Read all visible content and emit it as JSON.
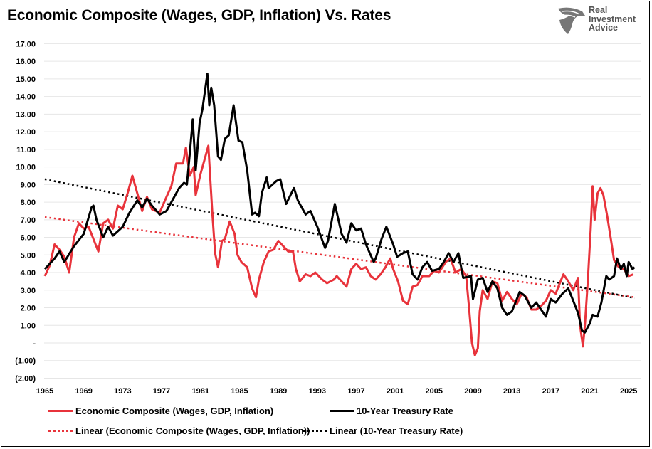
{
  "chart_data": {
    "type": "line",
    "title": "Economic Composite (Wages, GDP, Inflation) Vs. Rates",
    "xlabel": "",
    "ylabel": "",
    "xlim": [
      1965,
      2025.7
    ],
    "ylim": [
      -2,
      17
    ],
    "grid": true,
    "legend_placement": "bottom",
    "x_ticks": [
      "1965",
      "1969",
      "1973",
      "1977",
      "1981",
      "1985",
      "1989",
      "1993",
      "1997",
      "2001",
      "2005",
      "2009",
      "2013",
      "2017",
      "2021",
      "2025"
    ],
    "y_ticks": [
      {
        "value": 17,
        "label": "17.00"
      },
      {
        "value": 16,
        "label": "16.00"
      },
      {
        "value": 15,
        "label": "15.00"
      },
      {
        "value": 14,
        "label": "14.00"
      },
      {
        "value": 13,
        "label": "13.00"
      },
      {
        "value": 12,
        "label": "12.00"
      },
      {
        "value": 11,
        "label": "11.00"
      },
      {
        "value": 10,
        "label": "10.00"
      },
      {
        "value": 9,
        "label": "9.00"
      },
      {
        "value": 8,
        "label": "8.00"
      },
      {
        "value": 7,
        "label": "7.00"
      },
      {
        "value": 6,
        "label": "6.00"
      },
      {
        "value": 5,
        "label": "5.00"
      },
      {
        "value": 4,
        "label": "4.00"
      },
      {
        "value": 3,
        "label": "3.00"
      },
      {
        "value": 2,
        "label": "2.00"
      },
      {
        "value": 1,
        "label": "1.00"
      },
      {
        "value": 0,
        "label": "-"
      },
      {
        "value": -1,
        "label": "(1.00)"
      },
      {
        "value": -2,
        "label": "(2.00)"
      }
    ],
    "series": [
      {
        "name": "Economic Composite (Wages, GDP, Inflation)",
        "color": "#e8333b",
        "style": "solid",
        "x": [
          1965,
          1965.5,
          1966,
          1966.5,
          1967,
          1967.5,
          1968,
          1968.5,
          1969,
          1969.5,
          1970,
          1970.5,
          1971,
          1971.5,
          1972,
          1972.5,
          1973,
          1973.5,
          1974,
          1974.5,
          1975,
          1975.5,
          1976,
          1976.8,
          1977.5,
          1978,
          1978.5,
          1979.2,
          1979.5,
          1979.9,
          1980.3,
          1980.5,
          1981,
          1981.5,
          1981.8,
          1982.2,
          1982.5,
          1982.8,
          1983.2,
          1983.5,
          1984,
          1984.5,
          1984.8,
          1985.2,
          1985.8,
          1986.3,
          1986.7,
          1987,
          1987.5,
          1988,
          1988.5,
          1989,
          1989.5,
          1990,
          1990.5,
          1990.8,
          1991.2,
          1991.8,
          1992.3,
          1992.8,
          1993.5,
          1994,
          1994.7,
          1995,
          1995.5,
          1996,
          1996.5,
          1997,
          1997.5,
          1998,
          1998.5,
          1999,
          1999.5,
          2000,
          2000.5,
          2000.8,
          2001.3,
          2001.8,
          2002.3,
          2002.8,
          2003.3,
          2003.8,
          2004.5,
          2005,
          2005.5,
          2006.2,
          2006.7,
          2007.2,
          2007.8,
          2008.3,
          2008.6,
          2008.9,
          2009.2,
          2009.5,
          2009.7,
          2010,
          2010.5,
          2011,
          2011.5,
          2012,
          2012.5,
          2013,
          2013.5,
          2014,
          2014.5,
          2015,
          2015.5,
          2016,
          2016.5,
          2017,
          2017.5,
          2018,
          2018.3,
          2018.8,
          2019.3,
          2019.8,
          2020,
          2020.3,
          2020.5,
          2020.8,
          2021.1,
          2021.3,
          2021.5,
          2021.8,
          2022.1,
          2022.4,
          2022.8,
          2023.2,
          2023.5,
          2024,
          2024.5,
          2025,
          2025.5
        ],
        "values": [
          3.8,
          4.4,
          5.6,
          5.3,
          4.9,
          4.0,
          6.0,
          6.8,
          6.5,
          6.6,
          5.9,
          5.2,
          6.8,
          7.0,
          6.5,
          7.8,
          7.6,
          8.5,
          9.5,
          8.5,
          7.5,
          8.3,
          7.6,
          7.4,
          8.3,
          8.9,
          10.2,
          10.2,
          11.1,
          9.5,
          10.0,
          8.4,
          9.6,
          10.6,
          11.2,
          7.5,
          5.1,
          4.3,
          5.8,
          5.9,
          6.9,
          6.2,
          5.0,
          4.6,
          4.3,
          3.1,
          2.6,
          3.6,
          4.6,
          5.2,
          5.3,
          5.8,
          5.5,
          5.2,
          5.2,
          4.2,
          3.5,
          3.9,
          3.8,
          4.0,
          3.6,
          3.4,
          3.6,
          3.8,
          3.5,
          3.2,
          4.2,
          4.5,
          4.2,
          4.3,
          3.8,
          3.6,
          3.9,
          4.3,
          4.8,
          4.2,
          3.5,
          2.4,
          2.2,
          3.2,
          3.3,
          3.8,
          3.8,
          4.1,
          4.0,
          4.6,
          4.8,
          4.0,
          4.2,
          3.8,
          2.0,
          0.0,
          -0.7,
          -0.3,
          1.8,
          3.0,
          2.5,
          3.5,
          3.4,
          2.4,
          2.9,
          2.5,
          2.2,
          2.8,
          2.6,
          1.9,
          1.9,
          2.1,
          2.4,
          3.0,
          2.8,
          3.5,
          3.9,
          3.5,
          3.0,
          3.7,
          1.0,
          -0.2,
          1.0,
          3.5,
          6.5,
          8.9,
          7.0,
          8.5,
          8.8,
          8.4,
          7.2,
          5.8,
          4.7,
          4.3,
          4.2,
          3.8,
          3.9
        ]
      },
      {
        "name": "10-Year Treasury Rate",
        "color": "#000000",
        "style": "solid",
        "x": [
          1965,
          1966,
          1966.5,
          1967,
          1968,
          1969,
          1969.8,
          1970,
          1970.3,
          1971,
          1971.5,
          1972,
          1973,
          1973.7,
          1974.5,
          1975,
          1975.5,
          1976,
          1976.8,
          1977.5,
          1978,
          1978.8,
          1979.3,
          1979.6,
          1979.9,
          1980.2,
          1980.5,
          1980.9,
          1981.2,
          1981.7,
          1981.9,
          1982.1,
          1982.4,
          1982.8,
          1983.1,
          1983.5,
          1983.9,
          1984.4,
          1984.9,
          1985.3,
          1985.8,
          1986.3,
          1986.6,
          1987,
          1987.3,
          1987.8,
          1988,
          1988.8,
          1989.2,
          1989.8,
          1990.6,
          1991,
          1991.8,
          1992.3,
          1993,
          1993.8,
          1994.1,
          1994.8,
          1995.5,
          1996,
          1996.5,
          1997,
          1997.5,
          1998,
          1998.8,
          1999,
          1999.6,
          2000.1,
          2000.8,
          2001.2,
          2001.8,
          2002.3,
          2002.8,
          2003.3,
          2003.8,
          2004.3,
          2004.8,
          2005.5,
          2006,
          2006.5,
          2007,
          2007.5,
          2008,
          2008.8,
          2009,
          2009.5,
          2010,
          2010.5,
          2011,
          2011.5,
          2012,
          2012.5,
          2013,
          2013.8,
          2014.3,
          2015,
          2015.5,
          2016.5,
          2017,
          2017.5,
          2018.2,
          2018.8,
          2019.3,
          2019.8,
          2020.2,
          2020.5,
          2021,
          2021.3,
          2021.8,
          2022.2,
          2022.7,
          2023,
          2023.5,
          2023.8,
          2024.2,
          2024.5,
          2024.8,
          2025,
          2025.4,
          2025.6
        ],
        "values": [
          4.2,
          4.8,
          5.2,
          4.6,
          5.5,
          6.2,
          7.7,
          7.8,
          7.0,
          6.0,
          6.6,
          6.1,
          6.6,
          7.4,
          8.1,
          7.7,
          8.2,
          7.8,
          7.3,
          7.5,
          8.0,
          8.8,
          9.1,
          9.0,
          10.8,
          12.7,
          9.8,
          12.5,
          13.3,
          15.3,
          13.5,
          14.5,
          13.5,
          10.6,
          10.4,
          11.6,
          11.8,
          13.5,
          11.5,
          11.4,
          9.8,
          7.3,
          7.4,
          7.2,
          8.5,
          9.4,
          8.8,
          9.2,
          9.3,
          7.9,
          8.8,
          8.1,
          7.3,
          7.5,
          6.6,
          5.4,
          5.8,
          7.9,
          6.2,
          5.7,
          6.8,
          6.4,
          6.5,
          5.6,
          4.6,
          4.8,
          5.9,
          6.6,
          5.6,
          4.9,
          5.1,
          5.2,
          3.9,
          3.6,
          4.3,
          4.6,
          4.1,
          4.2,
          4.6,
          5.1,
          4.6,
          5.1,
          3.7,
          3.8,
          2.5,
          3.6,
          3.7,
          2.9,
          3.5,
          3.1,
          2.0,
          1.6,
          1.8,
          2.9,
          2.7,
          2.0,
          2.3,
          1.5,
          2.5,
          2.3,
          2.8,
          3.1,
          2.4,
          1.7,
          0.7,
          0.6,
          1.1,
          1.6,
          1.5,
          2.3,
          3.8,
          3.6,
          3.8,
          4.8,
          4.2,
          4.5,
          3.8,
          4.6,
          4.2,
          4.3
        ]
      },
      {
        "name": "Linear (Economic Composite (Wages, GDP, Inflation))",
        "color": "#e8333b",
        "style": "dotted",
        "x": [
          1965,
          2025.6
        ],
        "values": [
          7.15,
          2.6
        ]
      },
      {
        "name": "Linear (10-Year Treasury Rate)",
        "color": "#000000",
        "style": "dotted",
        "x": [
          1965,
          2025.6
        ],
        "values": [
          9.3,
          2.55
        ]
      }
    ]
  },
  "logo": {
    "lines": [
      "Real",
      "Investment",
      "Advice"
    ]
  }
}
